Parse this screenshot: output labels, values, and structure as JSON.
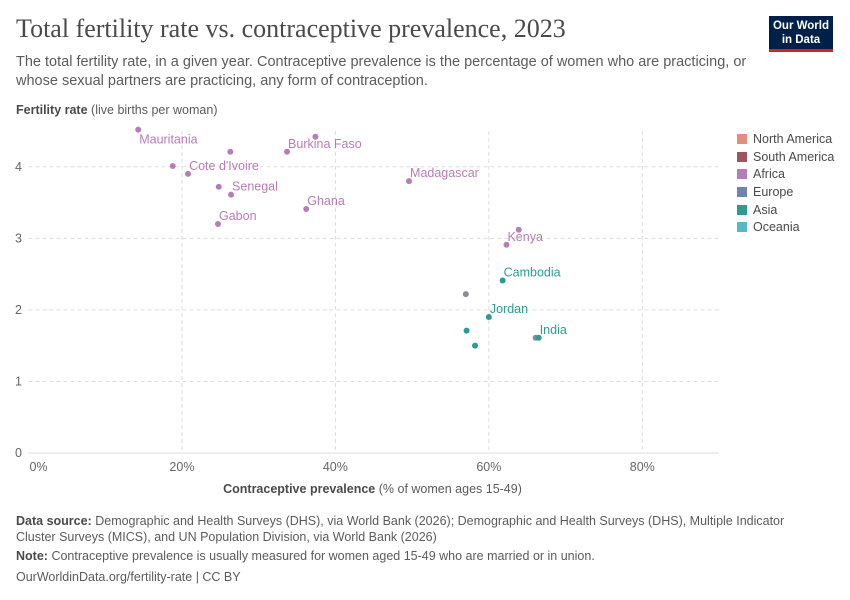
{
  "header": {
    "title": "Total fertility rate vs. contraceptive prevalence, 2023",
    "subtitle": "The total fertility rate, in a given year. Contraceptive prevalence is the percentage of women who are practicing, or whose sexual partners are practicing, any form of contraception.",
    "logo": "Our World in Data"
  },
  "chart_data": {
    "type": "scatter",
    "title": "Total fertility rate vs. contraceptive prevalence, 2023",
    "ylabel_bold": "Fertility rate",
    "ylabel_rest": "(live births per woman)",
    "xlabel_bold": "Contraceptive prevalence",
    "xlabel_rest": "(% of women ages 15-49)",
    "xlim": [
      0,
      90
    ],
    "ylim": [
      0,
      4.5
    ],
    "xticks": [
      0,
      20,
      40,
      60,
      80
    ],
    "xtick_labels": [
      "0%",
      "20%",
      "40%",
      "60%",
      "80%"
    ],
    "yticks": [
      0,
      1,
      2,
      3,
      4
    ],
    "ytick_labels": [
      "0",
      "1",
      "2",
      "3",
      "4"
    ],
    "grid": true,
    "legend_placement": "right",
    "regions": [
      {
        "name": "North America",
        "color": "#e78c7d"
      },
      {
        "name": "South America",
        "color": "#a0525f"
      },
      {
        "name": "Africa",
        "color": "#b77db6"
      },
      {
        "name": "Europe",
        "color": "#6f84ad"
      },
      {
        "name": "Asia",
        "color": "#2c9c91"
      },
      {
        "name": "Oceania",
        "color": "#57b8c5"
      }
    ],
    "other_color": "#8b8b98",
    "points": [
      {
        "label": "Mauritania",
        "region": "Africa",
        "x": 14.3,
        "y": 4.52
      },
      {
        "label": "",
        "region": "Africa",
        "x": 37.4,
        "y": 4.42
      },
      {
        "label": "",
        "region": "Africa",
        "x": 26.3,
        "y": 4.21
      },
      {
        "label": "Burkina Faso",
        "region": "Africa",
        "x": 33.7,
        "y": 4.21
      },
      {
        "label": "",
        "region": "Africa",
        "x": 18.8,
        "y": 4.01
      },
      {
        "label": "Cote d'Ivoire",
        "region": "Africa",
        "x": 20.8,
        "y": 3.9
      },
      {
        "label": "",
        "region": "Africa",
        "x": 24.8,
        "y": 3.72
      },
      {
        "label": "Senegal",
        "region": "Africa",
        "x": 26.4,
        "y": 3.61
      },
      {
        "label": "Ghana",
        "region": "Africa",
        "x": 36.2,
        "y": 3.41
      },
      {
        "label": "Gabon",
        "region": "Africa",
        "x": 24.7,
        "y": 3.2
      },
      {
        "label": "Madagascar",
        "region": "Africa",
        "x": 49.6,
        "y": 3.8
      },
      {
        "label": "",
        "region": "Africa",
        "x": 63.9,
        "y": 3.12
      },
      {
        "label": "Kenya",
        "region": "Africa",
        "x": 62.3,
        "y": 2.91
      },
      {
        "label": "Cambodia",
        "region": "Asia",
        "x": 61.8,
        "y": 2.41
      },
      {
        "label": "",
        "region": "",
        "x": 57.0,
        "y": 2.22
      },
      {
        "label": "Jordan",
        "region": "Asia",
        "x": 60.0,
        "y": 1.9
      },
      {
        "label": "",
        "region": "Asia",
        "x": 57.1,
        "y": 1.71
      },
      {
        "label": "",
        "region": "Asia",
        "x": 58.2,
        "y": 1.5
      },
      {
        "label": "",
        "region": "",
        "x": 66.1,
        "y": 1.61
      },
      {
        "label": "India",
        "region": "Asia",
        "x": 66.5,
        "y": 1.61
      }
    ]
  },
  "footer": {
    "source_label": "Data source:",
    "source": "Demographic and Health Surveys (DHS), via World Bank (2026); Demographic and Health Surveys (DHS), Multiple Indicator Cluster Surveys (MICS), and UN Population Division, via World Bank (2026)",
    "note_label": "Note:",
    "note": "Contraceptive prevalence is usually measured for women aged 15-49 who are married or in union.",
    "url": "OurWorldinData.org/fertility-rate | CC BY"
  }
}
